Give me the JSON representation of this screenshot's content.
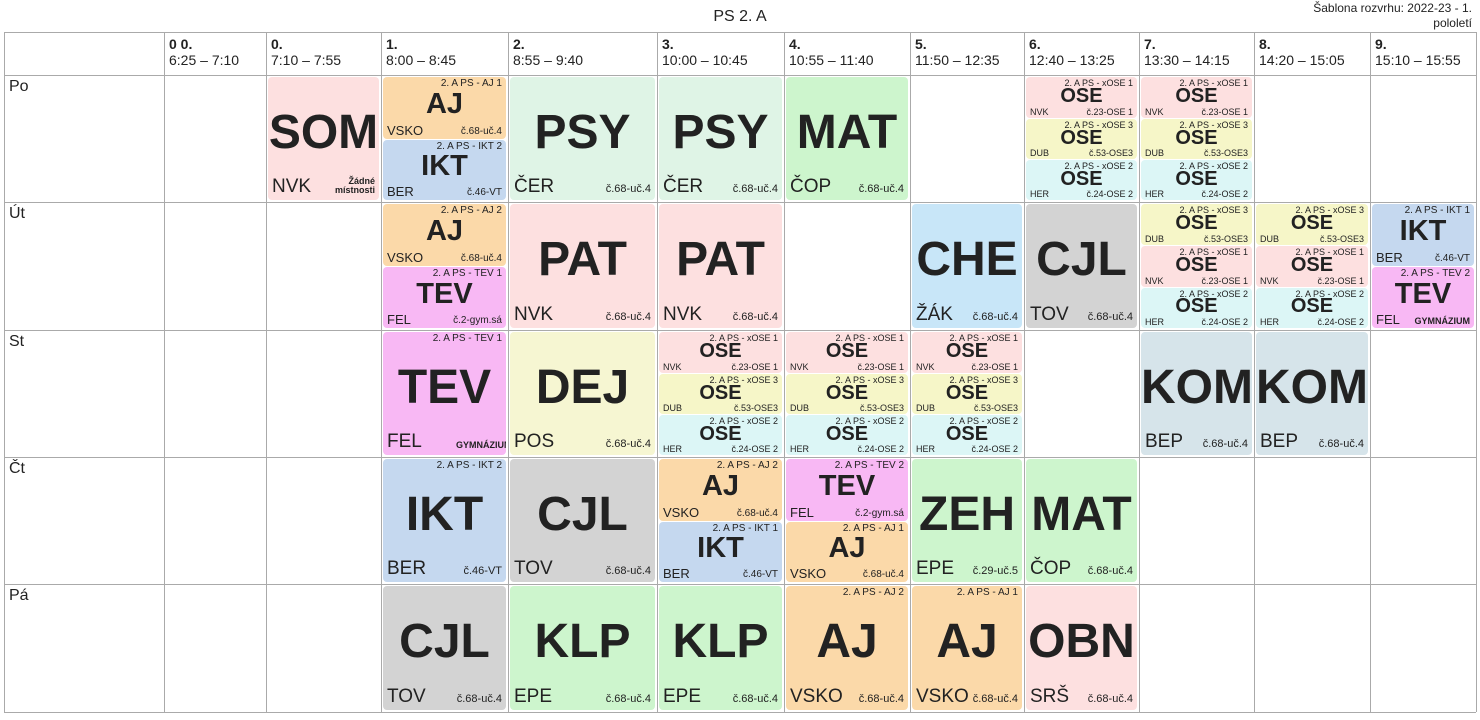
{
  "title": "PS 2. A",
  "template_label": "Šablona rozvrhu: 2022-23 - 1. pololetí",
  "periods": [
    {
      "num": "0 0.",
      "time": "6:25 – 7:10"
    },
    {
      "num": "0.",
      "time": "7:10 – 7:55"
    },
    {
      "num": "1.",
      "time": "8:00 – 8:45"
    },
    {
      "num": "2.",
      "time": "8:55 – 9:40"
    },
    {
      "num": "3.",
      "time": "10:00 – 10:45"
    },
    {
      "num": "4.",
      "time": "10:55 – 11:40"
    },
    {
      "num": "5.",
      "time": "11:50 – 12:35"
    },
    {
      "num": "6.",
      "time": "12:40 – 13:25"
    },
    {
      "num": "7.",
      "time": "13:30 – 14:15"
    },
    {
      "num": "8.",
      "time": "14:20 – 15:05"
    },
    {
      "num": "9.",
      "time": "15:10 – 15:55"
    }
  ],
  "days": [
    "Po",
    "Út",
    "St",
    "Čt",
    "Pá"
  ],
  "colors": {
    "AJ": "#fbd9a9",
    "IKT": "#c5d8ef",
    "SOM": "#fde0e0",
    "PSY": "#dff4e6",
    "MAT": "#cdf5cd",
    "PAT": "#fde0e0",
    "CHE": "#c8e6f8",
    "CJL": "#d3d3d3",
    "TEV": "#f8b8f4",
    "OSE_1": "#fde0e0",
    "OSE_3": "#f6f6c8",
    "OSE_2": "#dcf6f6",
    "DEJ": "#f6f6d2",
    "KOM": "#d6e4ea",
    "ZEH": "#cdf5cd",
    "KLP": "#cdf5cd",
    "OBN": "#fde0e0"
  },
  "lessons": [
    {
      "day": 0,
      "period": 1,
      "slot": 0,
      "slots": 1,
      "color": "SOM",
      "group": "",
      "subject": "SOM",
      "teacher": "NVK",
      "room": "Žádné místnosti"
    },
    {
      "day": 0,
      "period": 2,
      "slot": 0,
      "slots": 2,
      "color": "AJ",
      "group": "2. A PS - AJ 1",
      "subject": "AJ",
      "teacher": "VSKO",
      "room": "č.68-uč.4"
    },
    {
      "day": 0,
      "period": 2,
      "slot": 1,
      "slots": 2,
      "color": "IKT",
      "group": "2. A PS - IKT 2",
      "subject": "IKT",
      "teacher": "BER",
      "room": "č.46-VT"
    },
    {
      "day": 0,
      "period": 3,
      "slot": 0,
      "slots": 1,
      "color": "PSY",
      "group": "",
      "subject": "PSY",
      "teacher": "ČER",
      "room": "č.68-uč.4"
    },
    {
      "day": 0,
      "period": 4,
      "slot": 0,
      "slots": 1,
      "color": "PSY",
      "group": "",
      "subject": "PSY",
      "teacher": "ČER",
      "room": "č.68-uč.4"
    },
    {
      "day": 0,
      "period": 5,
      "slot": 0,
      "slots": 1,
      "color": "MAT",
      "group": "",
      "subject": "MAT",
      "teacher": "ČOP",
      "room": "č.68-uč.4"
    },
    {
      "day": 0,
      "period": 7,
      "slot": 0,
      "slots": 3,
      "color": "OSE_1",
      "group": "2. A PS - xOSE 1",
      "subject": "OSE",
      "teacher": "NVK",
      "room": "č.23-OSE 1"
    },
    {
      "day": 0,
      "period": 7,
      "slot": 1,
      "slots": 3,
      "color": "OSE_3",
      "group": "2. A PS - xOSE 3",
      "subject": "OSE",
      "teacher": "DUB",
      "room": "č.53-OSE3"
    },
    {
      "day": 0,
      "period": 7,
      "slot": 2,
      "slots": 3,
      "color": "OSE_2",
      "group": "2. A PS - xOSE 2",
      "subject": "OSE",
      "teacher": "HER",
      "room": "č.24-OSE 2"
    },
    {
      "day": 0,
      "period": 8,
      "slot": 0,
      "slots": 3,
      "color": "OSE_1",
      "group": "2. A PS - xOSE 1",
      "subject": "OSE",
      "teacher": "NVK",
      "room": "č.23-OSE 1"
    },
    {
      "day": 0,
      "period": 8,
      "slot": 1,
      "slots": 3,
      "color": "OSE_3",
      "group": "2. A PS - xOSE 3",
      "subject": "OSE",
      "teacher": "DUB",
      "room": "č.53-OSE3"
    },
    {
      "day": 0,
      "period": 8,
      "slot": 2,
      "slots": 3,
      "color": "OSE_2",
      "group": "2. A PS - xOSE 2",
      "subject": "OSE",
      "teacher": "HER",
      "room": "č.24-OSE 2"
    },
    {
      "day": 1,
      "period": 2,
      "slot": 0,
      "slots": 2,
      "color": "AJ",
      "group": "2. A PS - AJ 2",
      "subject": "AJ",
      "teacher": "VSKO",
      "room": "č.68-uč.4"
    },
    {
      "day": 1,
      "period": 2,
      "slot": 1,
      "slots": 2,
      "color": "TEV",
      "group": "2. A PS - TEV 1",
      "subject": "TEV",
      "teacher": "FEL",
      "room": "č.2-gym.sá"
    },
    {
      "day": 1,
      "period": 3,
      "slot": 0,
      "slots": 1,
      "color": "PAT",
      "group": "",
      "subject": "PAT",
      "teacher": "NVK",
      "room": "č.68-uč.4"
    },
    {
      "day": 1,
      "period": 4,
      "slot": 0,
      "slots": 1,
      "color": "PAT",
      "group": "",
      "subject": "PAT",
      "teacher": "NVK",
      "room": "č.68-uč.4"
    },
    {
      "day": 1,
      "period": 6,
      "slot": 0,
      "slots": 1,
      "color": "CHE",
      "group": "",
      "subject": "CHE",
      "teacher": "ŽÁK",
      "room": "č.68-uč.4"
    },
    {
      "day": 1,
      "period": 7,
      "slot": 0,
      "slots": 1,
      "color": "CJL",
      "group": "",
      "subject": "CJL",
      "teacher": "TOV",
      "room": "č.68-uč.4"
    },
    {
      "day": 1,
      "period": 8,
      "slot": 0,
      "slots": 3,
      "color": "OSE_3",
      "group": "2. A PS - xOSE 3",
      "subject": "OSE",
      "teacher": "DUB",
      "room": "č.53-OSE3"
    },
    {
      "day": 1,
      "period": 8,
      "slot": 1,
      "slots": 3,
      "color": "OSE_1",
      "group": "2. A PS - xOSE 1",
      "subject": "OSE",
      "teacher": "NVK",
      "room": "č.23-OSE 1"
    },
    {
      "day": 1,
      "period": 8,
      "slot": 2,
      "slots": 3,
      "color": "OSE_2",
      "group": "2. A PS - xOSE 2",
      "subject": "OSE",
      "teacher": "HER",
      "room": "č.24-OSE 2"
    },
    {
      "day": 1,
      "period": 9,
      "slot": 0,
      "slots": 3,
      "color": "OSE_3",
      "group": "2. A PS - xOSE 3",
      "subject": "OSE",
      "teacher": "DUB",
      "room": "č.53-OSE3"
    },
    {
      "day": 1,
      "period": 9,
      "slot": 1,
      "slots": 3,
      "color": "OSE_1",
      "group": "2. A PS - xOSE 1",
      "subject": "OSE",
      "teacher": "NVK",
      "room": "č.23-OSE 1"
    },
    {
      "day": 1,
      "period": 9,
      "slot": 2,
      "slots": 3,
      "color": "OSE_2",
      "group": "2. A PS - xOSE 2",
      "subject": "OSE",
      "teacher": "HER",
      "room": "č.24-OSE 2"
    },
    {
      "day": 1,
      "period": 10,
      "slot": 0,
      "slots": 2,
      "color": "IKT",
      "group": "2. A PS - IKT 1",
      "subject": "IKT",
      "teacher": "BER",
      "room": "č.46-VT"
    },
    {
      "day": 1,
      "period": 10,
      "slot": 1,
      "slots": 2,
      "color": "TEV",
      "group": "2. A PS - TEV 2",
      "subject": "TEV",
      "teacher": "FEL",
      "room": "GYMNÁZIUM"
    },
    {
      "day": 2,
      "period": 2,
      "slot": 0,
      "slots": 1,
      "color": "TEV",
      "group": "2. A PS - TEV 1",
      "subject": "TEV",
      "teacher": "FEL",
      "room": "GYMNÁZIUM"
    },
    {
      "day": 2,
      "period": 3,
      "slot": 0,
      "slots": 1,
      "color": "DEJ",
      "group": "",
      "subject": "DEJ",
      "teacher": "POS",
      "room": "č.68-uč.4"
    },
    {
      "day": 2,
      "period": 4,
      "slot": 0,
      "slots": 3,
      "color": "OSE_1",
      "group": "2. A PS - xOSE 1",
      "subject": "OSE",
      "teacher": "NVK",
      "room": "č.23-OSE 1"
    },
    {
      "day": 2,
      "period": 4,
      "slot": 1,
      "slots": 3,
      "color": "OSE_3",
      "group": "2. A PS - xOSE 3",
      "subject": "OSE",
      "teacher": "DUB",
      "room": "č.53-OSE3"
    },
    {
      "day": 2,
      "period": 4,
      "slot": 2,
      "slots": 3,
      "color": "OSE_2",
      "group": "2. A PS - xOSE 2",
      "subject": "OSE",
      "teacher": "HER",
      "room": "č.24-OSE 2"
    },
    {
      "day": 2,
      "period": 5,
      "slot": 0,
      "slots": 3,
      "color": "OSE_1",
      "group": "2. A PS - xOSE 1",
      "subject": "OSE",
      "teacher": "NVK",
      "room": "č.23-OSE 1"
    },
    {
      "day": 2,
      "period": 5,
      "slot": 1,
      "slots": 3,
      "color": "OSE_3",
      "group": "2. A PS - xOSE 3",
      "subject": "OSE",
      "teacher": "DUB",
      "room": "č.53-OSE3"
    },
    {
      "day": 2,
      "period": 5,
      "slot": 2,
      "slots": 3,
      "color": "OSE_2",
      "group": "2. A PS - xOSE 2",
      "subject": "OSE",
      "teacher": "HER",
      "room": "č.24-OSE 2"
    },
    {
      "day": 2,
      "period": 6,
      "slot": 0,
      "slots": 3,
      "color": "OSE_1",
      "group": "2. A PS - xOSE 1",
      "subject": "OSE",
      "teacher": "NVK",
      "room": "č.23-OSE 1"
    },
    {
      "day": 2,
      "period": 6,
      "slot": 1,
      "slots": 3,
      "color": "OSE_3",
      "group": "2. A PS - xOSE 3",
      "subject": "OSE",
      "teacher": "DUB",
      "room": "č.53-OSE3"
    },
    {
      "day": 2,
      "period": 6,
      "slot": 2,
      "slots": 3,
      "color": "OSE_2",
      "group": "2. A PS - xOSE 2",
      "subject": "OSE",
      "teacher": "HER",
      "room": "č.24-OSE 2"
    },
    {
      "day": 2,
      "period": 8,
      "slot": 0,
      "slots": 1,
      "color": "KOM",
      "group": "",
      "subject": "KOM",
      "teacher": "BEP",
      "room": "č.68-uč.4"
    },
    {
      "day": 2,
      "period": 9,
      "slot": 0,
      "slots": 1,
      "color": "KOM",
      "group": "",
      "subject": "KOM",
      "teacher": "BEP",
      "room": "č.68-uč.4"
    },
    {
      "day": 3,
      "period": 2,
      "slot": 0,
      "slots": 1,
      "color": "IKT",
      "group": "2. A PS - IKT 2",
      "subject": "IKT",
      "teacher": "BER",
      "room": "č.46-VT"
    },
    {
      "day": 3,
      "period": 3,
      "slot": 0,
      "slots": 1,
      "color": "CJL",
      "group": "",
      "subject": "CJL",
      "teacher": "TOV",
      "room": "č.68-uč.4"
    },
    {
      "day": 3,
      "period": 4,
      "slot": 0,
      "slots": 2,
      "color": "AJ",
      "group": "2. A PS - AJ 2",
      "subject": "AJ",
      "teacher": "VSKO",
      "room": "č.68-uč.4"
    },
    {
      "day": 3,
      "period": 4,
      "slot": 1,
      "slots": 2,
      "color": "IKT",
      "group": "2. A PS - IKT 1",
      "subject": "IKT",
      "teacher": "BER",
      "room": "č.46-VT"
    },
    {
      "day": 3,
      "period": 5,
      "slot": 0,
      "slots": 2,
      "color": "TEV",
      "group": "2. A PS - TEV 2",
      "subject": "TEV",
      "teacher": "FEL",
      "room": "č.2-gym.sá"
    },
    {
      "day": 3,
      "period": 5,
      "slot": 1,
      "slots": 2,
      "color": "AJ",
      "group": "2. A PS - AJ 1",
      "subject": "AJ",
      "teacher": "VSKO",
      "room": "č.68-uč.4"
    },
    {
      "day": 3,
      "period": 6,
      "slot": 0,
      "slots": 1,
      "color": "ZEH",
      "group": "",
      "subject": "ZEH",
      "teacher": "EPE",
      "room": "č.29-uč.5"
    },
    {
      "day": 3,
      "period": 7,
      "slot": 0,
      "slots": 1,
      "color": "MAT",
      "group": "",
      "subject": "MAT",
      "teacher": "ČOP",
      "room": "č.68-uč.4"
    },
    {
      "day": 4,
      "period": 2,
      "slot": 0,
      "slots": 1,
      "color": "CJL",
      "group": "",
      "subject": "CJL",
      "teacher": "TOV",
      "room": "č.68-uč.4"
    },
    {
      "day": 4,
      "period": 3,
      "slot": 0,
      "slots": 1,
      "color": "KLP",
      "group": "",
      "subject": "KLP",
      "teacher": "EPE",
      "room": "č.68-uč.4"
    },
    {
      "day": 4,
      "period": 4,
      "slot": 0,
      "slots": 1,
      "color": "KLP",
      "group": "",
      "subject": "KLP",
      "teacher": "EPE",
      "room": "č.68-uč.4"
    },
    {
      "day": 4,
      "period": 5,
      "slot": 0,
      "slots": 1,
      "color": "AJ",
      "group": "2. A PS - AJ 2",
      "subject": "AJ",
      "teacher": "VSKO",
      "room": "č.68-uč.4"
    },
    {
      "day": 4,
      "period": 6,
      "slot": 0,
      "slots": 1,
      "color": "AJ",
      "group": "2. A PS - AJ 1",
      "subject": "AJ",
      "teacher": "VSKO",
      "room": "č.68-uč.4"
    },
    {
      "day": 4,
      "period": 7,
      "slot": 0,
      "slots": 1,
      "color": "OBN",
      "group": "",
      "subject": "OBN",
      "teacher": "SRŠ",
      "room": "č.68-uč.4"
    }
  ]
}
